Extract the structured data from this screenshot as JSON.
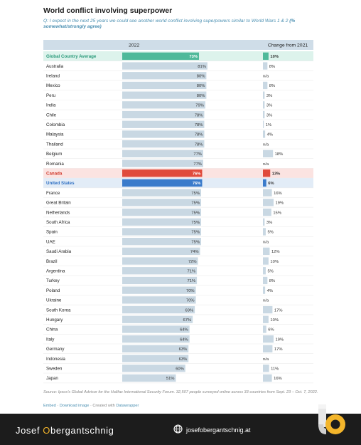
{
  "title": "World conflict involving superpower",
  "subtitle_q": "Q: I expect in the next 25 years we could see another world conflict involving superpowers similar to World Wars 1 & 2",
  "subtitle_note": "(% somewhat/strongly agree)",
  "source": "Source: Ipsos's Global Advisor for the Halifax International Security Forum. 32,507 people surveyed online across 33 countries from Sept. 23 – Oct. 7, 2022.",
  "links": {
    "embed": "Embed",
    "download": "Download image",
    "created": "Created with",
    "tool": "Datawrapper"
  },
  "footer": {
    "brand_before": "Josef ",
    "brand_highlight": "O",
    "brand_after": "bergantschnig",
    "website": "josefobergantschnig.at"
  },
  "colors": {
    "highlight_avg": "#4fb99a",
    "highlight_canada": "#e04b3c",
    "highlight_us": "#3a7bcb",
    "bar_default": "#c9d8e3"
  },
  "chart_data": {
    "type": "table",
    "columns": [
      "2022",
      "Change from 2021"
    ],
    "rows": [
      {
        "country": "Global Country Average",
        "value": 73,
        "label": "73%",
        "change": 10,
        "change_label": "10%",
        "highlight": "avg"
      },
      {
        "country": "Australia",
        "value": 81,
        "label": "81%",
        "change": 8,
        "change_label": "8%"
      },
      {
        "country": "Ireland",
        "value": 80,
        "label": "80%",
        "change": null,
        "change_label": "n/a"
      },
      {
        "country": "Mexico",
        "value": 80,
        "label": "80%",
        "change": 8,
        "change_label": "8%"
      },
      {
        "country": "Peru",
        "value": 80,
        "label": "80%",
        "change": 3,
        "change_label": "3%"
      },
      {
        "country": "India",
        "value": 79,
        "label": "79%",
        "change": 3,
        "change_label": "3%"
      },
      {
        "country": "Chile",
        "value": 78,
        "label": "78%",
        "change": 3,
        "change_label": "3%"
      },
      {
        "country": "Colombia",
        "value": 78,
        "label": "78%",
        "change": 1,
        "change_label": "1%"
      },
      {
        "country": "Malaysia",
        "value": 78,
        "label": "78%",
        "change": 4,
        "change_label": "4%"
      },
      {
        "country": "Thailand",
        "value": 78,
        "label": "78%",
        "change": null,
        "change_label": "n/a"
      },
      {
        "country": "Belgium",
        "value": 77,
        "label": "77%",
        "change": 18,
        "change_label": "18%"
      },
      {
        "country": "Romania",
        "value": 77,
        "label": "77%",
        "change": null,
        "change_label": "n/a"
      },
      {
        "country": "Canada",
        "value": 76,
        "label": "76%",
        "change": 13,
        "change_label": "13%",
        "highlight": "canada"
      },
      {
        "country": "United States",
        "value": 76,
        "label": "76%",
        "change": 6,
        "change_label": "6%",
        "highlight": "us"
      },
      {
        "country": "France",
        "value": 75,
        "label": "75%",
        "change": 16,
        "change_label": "16%"
      },
      {
        "country": "Great Britain",
        "value": 75,
        "label": "75%",
        "change": 19,
        "change_label": "19%"
      },
      {
        "country": "Netherlands",
        "value": 75,
        "label": "75%",
        "change": 15,
        "change_label": "15%"
      },
      {
        "country": "South Africa",
        "value": 75,
        "label": "75%",
        "change": 3,
        "change_label": "3%"
      },
      {
        "country": "Spain",
        "value": 75,
        "label": "75%",
        "change": 5,
        "change_label": "5%"
      },
      {
        "country": "UAE",
        "value": 75,
        "label": "75%",
        "change": null,
        "change_label": "n/a"
      },
      {
        "country": "Saudi Arabia",
        "value": 74,
        "label": "74%",
        "change": 12,
        "change_label": "12%"
      },
      {
        "country": "Brazil",
        "value": 72,
        "label": "72%",
        "change": 10,
        "change_label": "10%"
      },
      {
        "country": "Argentina",
        "value": 71,
        "label": "71%",
        "change": 5,
        "change_label": "5%"
      },
      {
        "country": "Turkey",
        "value": 71,
        "label": "71%",
        "change": 8,
        "change_label": "8%"
      },
      {
        "country": "Poland",
        "value": 70,
        "label": "70%",
        "change": 4,
        "change_label": "4%"
      },
      {
        "country": "Ukraine",
        "value": 70,
        "label": "70%",
        "change": null,
        "change_label": "n/a"
      },
      {
        "country": "South Korea",
        "value": 69,
        "label": "69%",
        "change": 17,
        "change_label": "17%"
      },
      {
        "country": "Hungary",
        "value": 67,
        "label": "67%",
        "change": 10,
        "change_label": "10%"
      },
      {
        "country": "China",
        "value": 64,
        "label": "64%",
        "change": 6,
        "change_label": "6%"
      },
      {
        "country": "Italy",
        "value": 64,
        "label": "64%",
        "change": 19,
        "change_label": "19%"
      },
      {
        "country": "Germany",
        "value": 63,
        "label": "63%",
        "change": 17,
        "change_label": "17%"
      },
      {
        "country": "Indonesia",
        "value": 63,
        "label": "63%",
        "change": null,
        "change_label": "n/a"
      },
      {
        "country": "Sweden",
        "value": 60,
        "label": "60%",
        "change": 11,
        "change_label": "11%"
      },
      {
        "country": "Japan",
        "value": 51,
        "label": "51%",
        "change": 16,
        "change_label": "16%"
      }
    ]
  }
}
